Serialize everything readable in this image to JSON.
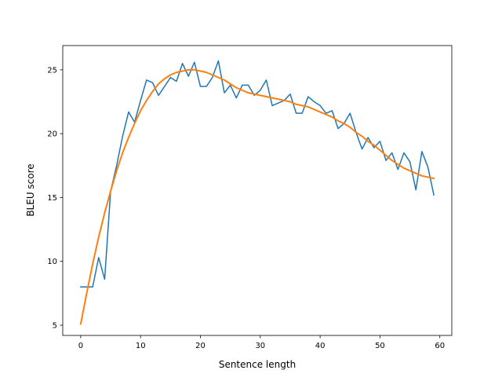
{
  "chart_data": {
    "type": "line",
    "title": "",
    "xlabel": "Sentence length",
    "ylabel": "BLEU score",
    "xlim": [
      -3.0,
      62.0
    ],
    "ylim": [
      4.2,
      26.9
    ],
    "x_ticks": [
      0,
      10,
      20,
      30,
      40,
      50,
      60
    ],
    "y_ticks": [
      5,
      10,
      15,
      20,
      25
    ],
    "grid": false,
    "legend": "none",
    "x": [
      0,
      1,
      2,
      3,
      4,
      5,
      6,
      7,
      8,
      9,
      10,
      11,
      12,
      13,
      14,
      15,
      16,
      17,
      18,
      19,
      20,
      21,
      22,
      23,
      24,
      25,
      26,
      27,
      28,
      29,
      30,
      31,
      32,
      33,
      34,
      35,
      36,
      37,
      38,
      39,
      40,
      41,
      42,
      43,
      44,
      45,
      46,
      47,
      48,
      49,
      50,
      51,
      52,
      53,
      54,
      55,
      56,
      57,
      58,
      59
    ],
    "series": [
      {
        "color": "#1f77b4",
        "values": [
          8.0,
          8.0,
          8.0,
          10.3,
          8.6,
          15.5,
          17.5,
          19.8,
          21.7,
          20.9,
          22.6,
          24.2,
          24.0,
          23.0,
          23.7,
          24.4,
          24.1,
          25.5,
          24.5,
          25.6,
          23.7,
          23.7,
          24.4,
          25.7,
          23.2,
          23.8,
          22.8,
          23.8,
          23.8,
          23.0,
          23.4,
          24.2,
          22.2,
          22.4,
          22.6,
          23.1,
          21.6,
          21.6,
          22.9,
          22.5,
          22.2,
          21.6,
          21.8,
          20.4,
          20.8,
          21.6,
          20.1,
          18.8,
          19.7,
          18.9,
          19.4,
          17.9,
          18.5,
          17.2,
          18.5,
          17.8,
          15.6,
          18.6,
          17.4,
          15.2
        ]
      },
      {
        "color": "#ff7f0e",
        "values": [
          5.1,
          7.5,
          9.8,
          11.9,
          13.8,
          15.5,
          17.1,
          18.5,
          19.7,
          20.8,
          21.8,
          22.6,
          23.3,
          23.9,
          24.3,
          24.6,
          24.8,
          24.9,
          25.0,
          25.0,
          24.9,
          24.8,
          24.6,
          24.4,
          24.2,
          23.9,
          23.6,
          23.4,
          23.2,
          23.1,
          23.0,
          22.9,
          22.8,
          22.7,
          22.6,
          22.5,
          22.3,
          22.2,
          22.1,
          21.9,
          21.7,
          21.5,
          21.3,
          21.0,
          20.8,
          20.5,
          20.1,
          19.8,
          19.4,
          19.1,
          18.7,
          18.3,
          17.9,
          17.6,
          17.3,
          17.1,
          16.9,
          16.7,
          16.6,
          16.5
        ]
      }
    ]
  }
}
